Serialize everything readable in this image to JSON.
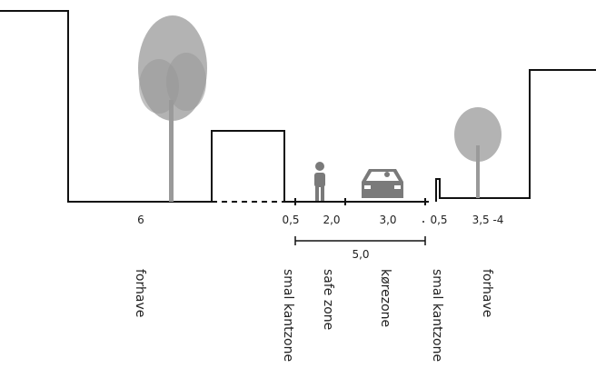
{
  "dimensions": [
    "6",
    "0,5",
    "2,0",
    "3,0",
    "0,5",
    "3,5 -4"
  ],
  "total": "5,0",
  "zones": [
    "forhave",
    "smal kantzone",
    "safe zone",
    "kørezone",
    "smal kantzone",
    "forhave"
  ]
}
